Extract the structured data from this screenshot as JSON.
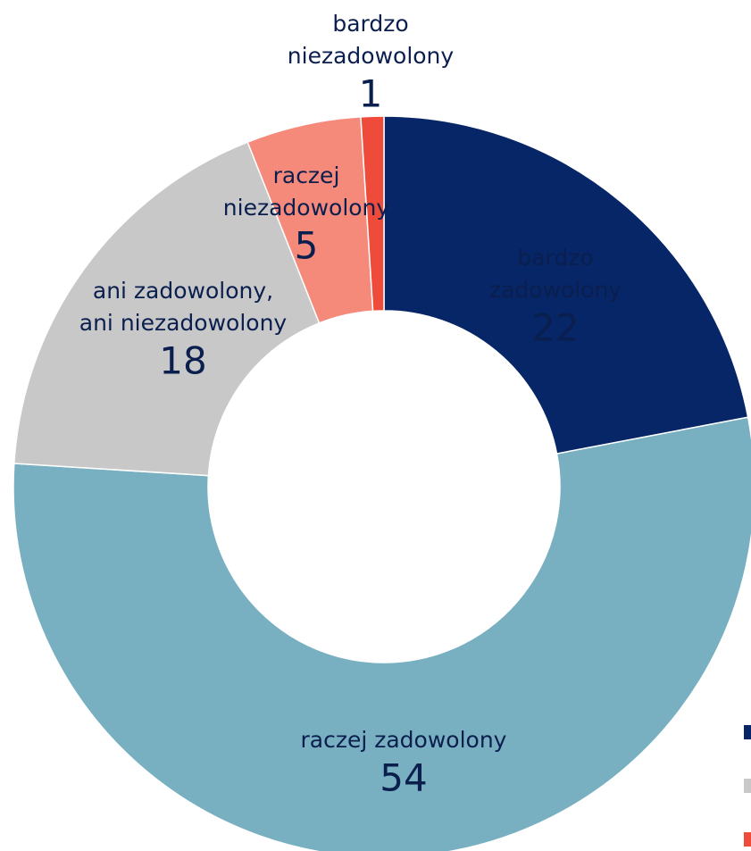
{
  "chart_data": {
    "type": "donut",
    "categories": [
      [
        "bardzo",
        "zadowolony"
      ],
      [
        "raczej zadowolony"
      ],
      [
        "ani zadowolony,",
        "ani niezadowolony"
      ],
      [
        "raczej",
        "niezadowolony"
      ],
      [
        "bardzo",
        "niezadowolony"
      ]
    ],
    "values": [
      22,
      54,
      18,
      5,
      1
    ],
    "colors": [
      "#062667",
      "#78b0c1",
      "#c8c8c8",
      "#f5897a",
      "#ef4b3b"
    ]
  }
}
